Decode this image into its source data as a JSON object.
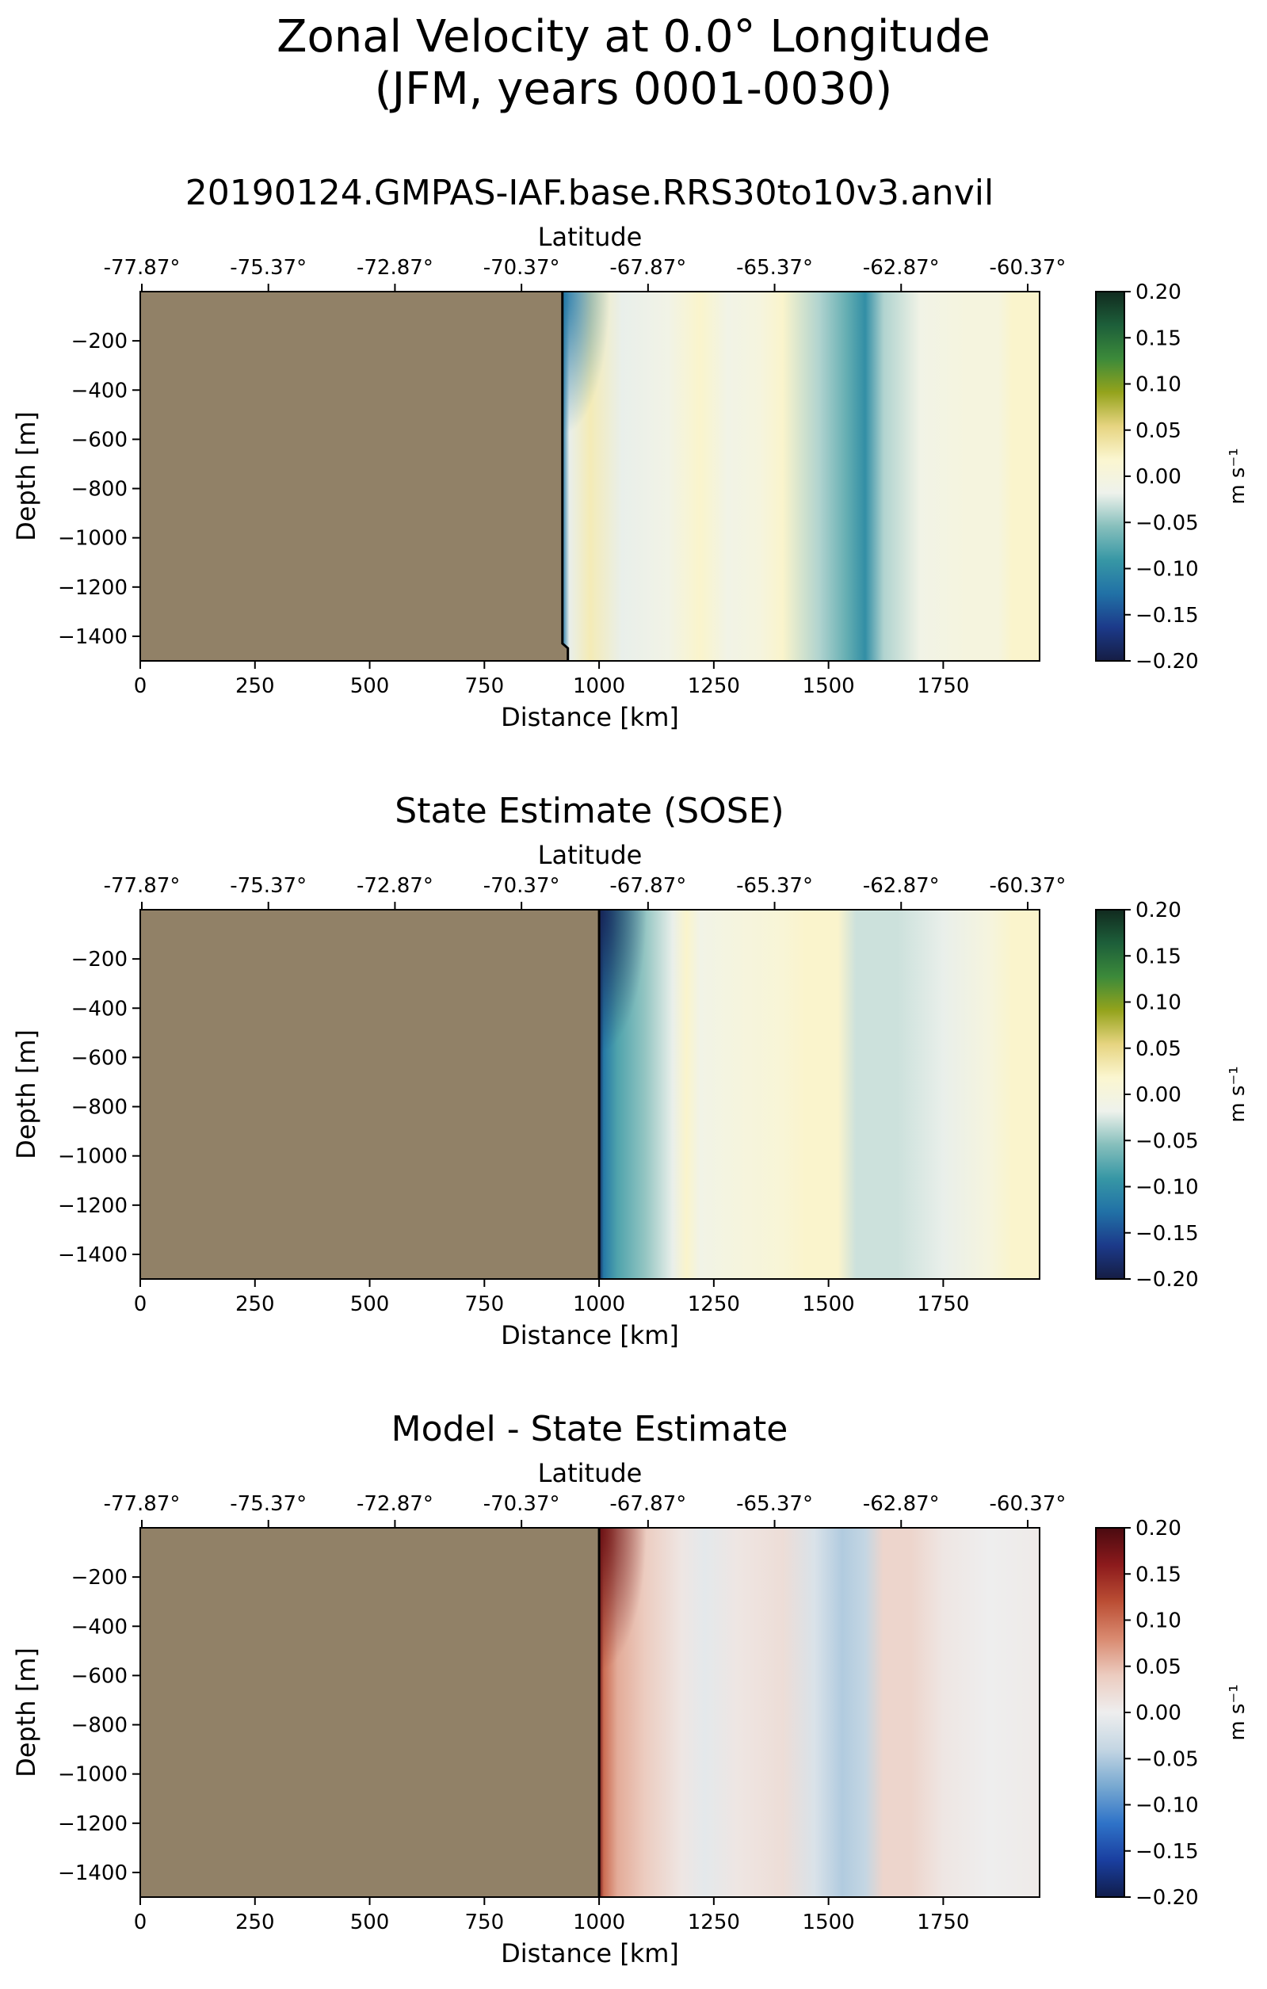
{
  "figure": {
    "title_line1": "Zonal Velocity at 0.0° Longitude",
    "title_line2": "(JFM, years 0001-0030)"
  },
  "chart_data": [
    {
      "type": "heatmap",
      "title": "20190124.GMPAS-IAF.base.RRS30to10v3.anvil",
      "xlabel": "Distance [km]",
      "ylabel": "Depth [m]",
      "secondary_xlabel": "Latitude",
      "xlim": [
        0,
        1960
      ],
      "ylim": [
        -1500,
        0
      ],
      "x_ticks": [
        0,
        250,
        500,
        750,
        1000,
        1250,
        1500,
        1750
      ],
      "y_ticks": [
        -200,
        -400,
        -600,
        -800,
        -1000,
        -1200,
        -1400
      ],
      "lat_ticks": [
        "-77.87°",
        "-75.37°",
        "-72.87°",
        "-70.37°",
        "-67.87°",
        "-65.37°",
        "-62.87°",
        "-60.37°"
      ],
      "land_boundary_km": 920,
      "colorbar": {
        "label": "m s⁻¹",
        "range": [
          -0.2,
          0.2
        ],
        "ticks": [
          "0.20",
          "0.15",
          "0.10",
          "0.05",
          "0.00",
          "−0.05",
          "−0.10",
          "−0.15",
          "−0.20"
        ],
        "colormap": "balance-ocean",
        "colors": [
          "#151d44",
          "#1c3a8a",
          "#2171a6",
          "#3797a5",
          "#86bfbc",
          "#eef2ec",
          "#fbf6d0",
          "#e6d480",
          "#94a31c",
          "#3c8a3a",
          "#1d5f3a",
          "#112a1f"
        ]
      },
      "profile_x_km": [
        920,
        935,
        980,
        1050,
        1150,
        1220,
        1280,
        1350,
        1400,
        1480,
        1540,
        1580,
        1620,
        1700,
        1800,
        1870,
        1900,
        1960
      ],
      "profile_values": [
        -0.12,
        -0.02,
        0.03,
        -0.02,
        -0.01,
        0.02,
        -0.01,
        0.0,
        0.02,
        -0.04,
        -0.07,
        -0.1,
        -0.04,
        -0.01,
        0.0,
        0.0,
        0.02,
        0.02
      ]
    },
    {
      "type": "heatmap",
      "title": "State Estimate (SOSE)",
      "xlabel": "Distance [km]",
      "ylabel": "Depth [m]",
      "secondary_xlabel": "Latitude",
      "xlim": [
        0,
        1960
      ],
      "ylim": [
        -1500,
        0
      ],
      "x_ticks": [
        0,
        250,
        500,
        750,
        1000,
        1250,
        1500,
        1750
      ],
      "y_ticks": [
        -200,
        -400,
        -600,
        -800,
        -1000,
        -1200,
        -1400
      ],
      "lat_ticks": [
        "-77.87°",
        "-75.37°",
        "-72.87°",
        "-70.37°",
        "-67.87°",
        "-65.37°",
        "-62.87°",
        "-60.37°"
      ],
      "land_boundary_km": 1000,
      "colorbar": {
        "label": "m s⁻¹",
        "range": [
          -0.2,
          0.2
        ],
        "ticks": [
          "0.20",
          "0.15",
          "0.10",
          "0.05",
          "0.00",
          "−0.05",
          "−0.10",
          "−0.15",
          "−0.20"
        ],
        "colormap": "balance-ocean",
        "colors": [
          "#151d44",
          "#1c3a8a",
          "#2171a6",
          "#3797a5",
          "#86bfbc",
          "#eef2ec",
          "#fbf6d0",
          "#e6d480",
          "#94a31c",
          "#3c8a3a",
          "#1d5f3a",
          "#112a1f"
        ]
      },
      "profile_x_km": [
        1000,
        1010,
        1040,
        1100,
        1160,
        1190,
        1220,
        1300,
        1400,
        1450,
        1520,
        1560,
        1650,
        1750,
        1850,
        1900,
        1960
      ],
      "profile_values": [
        -0.19,
        -0.12,
        -0.08,
        -0.05,
        -0.02,
        0.02,
        -0.01,
        0.0,
        0.01,
        0.02,
        0.02,
        -0.03,
        -0.03,
        -0.02,
        0.0,
        0.02,
        0.02
      ]
    },
    {
      "type": "heatmap",
      "title": "Model - State Estimate",
      "xlabel": "Distance [km]",
      "ylabel": "Depth [m]",
      "secondary_xlabel": "Latitude",
      "xlim": [
        0,
        1960
      ],
      "ylim": [
        -1500,
        0
      ],
      "x_ticks": [
        0,
        250,
        500,
        750,
        1000,
        1250,
        1500,
        1750
      ],
      "y_ticks": [
        -200,
        -400,
        -600,
        -800,
        -1000,
        -1200,
        -1400
      ],
      "lat_ticks": [
        "-77.87°",
        "-75.37°",
        "-72.87°",
        "-70.37°",
        "-67.87°",
        "-65.37°",
        "-62.87°",
        "-60.37°"
      ],
      "land_boundary_km": 1000,
      "colorbar": {
        "label": "m s⁻¹",
        "range": [
          -0.2,
          0.2
        ],
        "ticks": [
          "0.20",
          "0.15",
          "0.10",
          "0.05",
          "0.00",
          "−0.05",
          "−0.10",
          "−0.15",
          "−0.20"
        ],
        "colormap": "RdBu_r",
        "colors": [
          "#101d4b",
          "#1a3fa0",
          "#2f73c8",
          "#78a9d1",
          "#c4d6e3",
          "#eeeeee",
          "#ecccc0",
          "#d98a70",
          "#bb4e34",
          "#8c1a1c",
          "#4a0a10"
        ]
      },
      "profile_x_km": [
        1000,
        1010,
        1040,
        1100,
        1180,
        1230,
        1300,
        1400,
        1470,
        1530,
        1580,
        1620,
        1680,
        1750,
        1850,
        1960
      ],
      "profile_values": [
        0.18,
        0.1,
        0.06,
        0.04,
        0.01,
        -0.01,
        0.01,
        0.02,
        -0.02,
        -0.05,
        -0.04,
        0.03,
        0.03,
        0.01,
        0.0,
        0.005
      ]
    }
  ]
}
